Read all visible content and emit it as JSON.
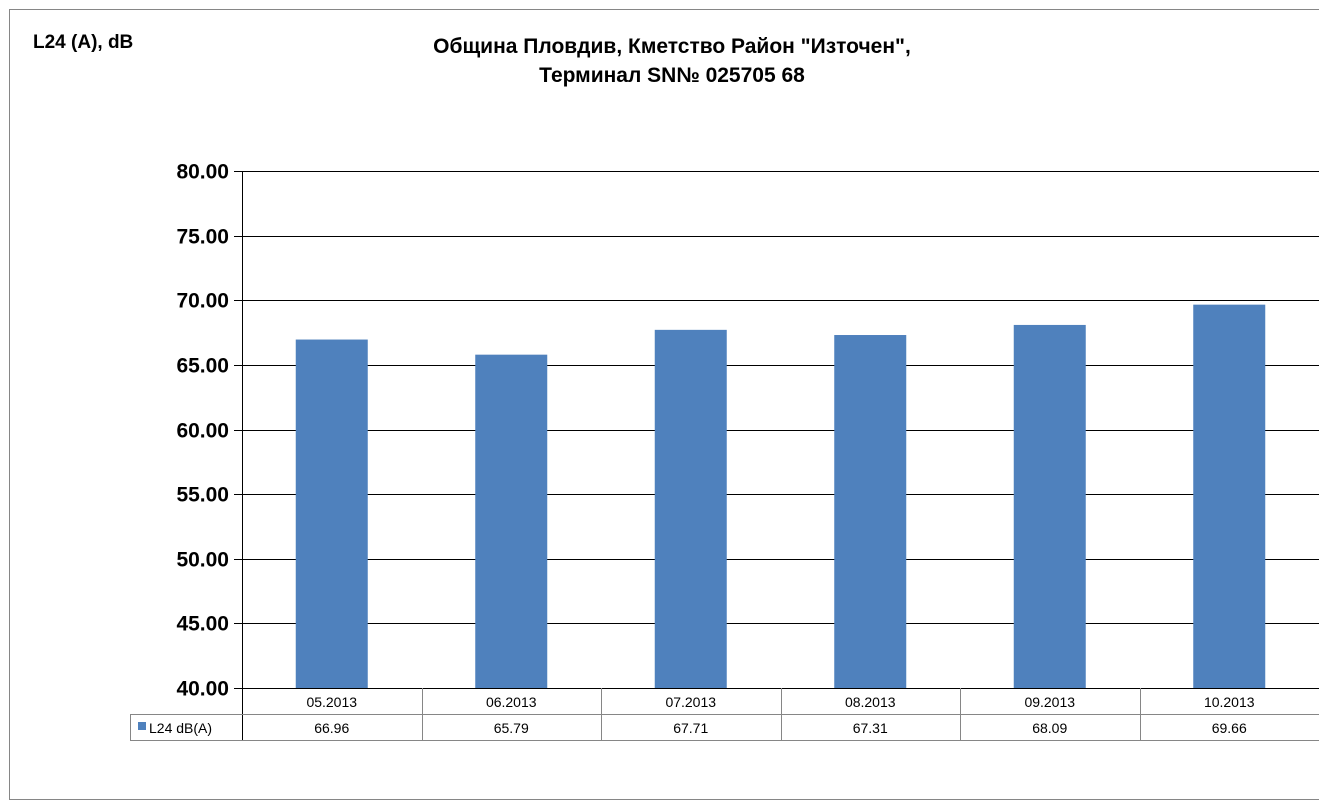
{
  "chart_data": {
    "type": "bar",
    "title": "Община Пловдив, Кметство Район \"Източен\",",
    "subtitle": "Терминал SN№ 025705 68",
    "ylabel": "L24 (A), dB",
    "xlabel": "",
    "categories": [
      "05.2013",
      "06.2013",
      "07.2013",
      "08.2013",
      "09.2013",
      "10.2013"
    ],
    "series": [
      {
        "name": "L24 dB(A)",
        "values": [
          66.96,
          65.79,
          67.71,
          67.31,
          68.09,
          69.66
        ],
        "value_labels": [
          "66.96",
          "65.79",
          "67.71",
          "67.31",
          "68.09",
          "69.66"
        ],
        "color": "#4f81bd"
      }
    ],
    "ylim": [
      40,
      80
    ],
    "yticks": [
      "40.00",
      "45.00",
      "50.00",
      "55.00",
      "60.00",
      "65.00",
      "70.00",
      "75.00",
      "80.00"
    ],
    "grid": true,
    "legend": "data table below plot",
    "colors": {
      "bar": "#4f81bd",
      "grid": "#000000",
      "table_border": "#868686"
    }
  }
}
